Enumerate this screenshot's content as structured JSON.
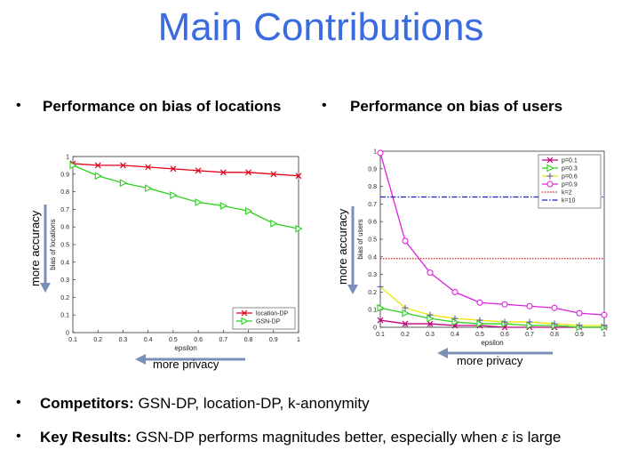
{
  "slide": {
    "title": "Main Contributions",
    "bullet_left": "Performance on bias of locations",
    "bullet_right": "Performance on bias of users",
    "more_accuracy": "more accuracy",
    "more_privacy": "more privacy",
    "competitors_label": "Competitors:",
    "competitors_text": " GSN-DP, location-DP, k-anonymity",
    "results_label": "Key Results:",
    "results_text": " GSN-DP performs magnitudes better, especially when ",
    "results_symbol": "ε",
    "results_tail": " is large",
    "bullet_char": "•"
  },
  "chart_data": [
    {
      "type": "line",
      "title": "",
      "xlabel": "epsilon",
      "ylabel": "bias of locations",
      "x": [
        0.1,
        0.2,
        0.3,
        0.4,
        0.5,
        0.6,
        0.7,
        0.8,
        0.9,
        1
      ],
      "xlim": [
        0.1,
        1
      ],
      "ylim": [
        0,
        1
      ],
      "xticks": [
        "0.1",
        "0.2",
        "0.3",
        "0.4",
        "0.5",
        "0.6",
        "0.7",
        "0.8",
        "0.9",
        "1"
      ],
      "yticks": [
        "0",
        "0.1",
        "0.2",
        "0.3",
        "0.4",
        "0.5",
        "0.6",
        "0.7",
        "0.8",
        "0.9",
        "1"
      ],
      "legend_position": "bottom-right",
      "series": [
        {
          "name": "location-DP",
          "color": "#e0001b",
          "marker": "x",
          "style": "solid",
          "values": [
            0.96,
            0.95,
            0.95,
            0.94,
            0.93,
            0.92,
            0.91,
            0.91,
            0.9,
            0.89
          ]
        },
        {
          "name": "GSN-DP",
          "color": "#2bd11b",
          "marker": "triangle-right",
          "style": "solid",
          "values": [
            0.95,
            0.89,
            0.85,
            0.82,
            0.78,
            0.74,
            0.72,
            0.69,
            0.62,
            0.59
          ]
        }
      ]
    },
    {
      "type": "line",
      "title": "",
      "xlabel": "epsilon",
      "ylabel": "bias of users",
      "x": [
        0.1,
        0.2,
        0.3,
        0.4,
        0.5,
        0.6,
        0.7,
        0.8,
        0.9,
        1
      ],
      "xlim": [
        0.1,
        1
      ],
      "ylim": [
        0,
        1
      ],
      "xticks": [
        "0.1",
        "0.2",
        "0.3",
        "0.4",
        "0.5",
        "0.6",
        "0.7",
        "0.8",
        "0.9",
        "1"
      ],
      "yticks": [
        "0",
        "0.1",
        "0.2",
        "0.3",
        "0.4",
        "0.5",
        "0.6",
        "0.7",
        "0.8",
        "0.9",
        "1"
      ],
      "legend_position": "top-right",
      "series": [
        {
          "name": "p=0.1",
          "color": "#c0007a",
          "marker": "x",
          "style": "solid",
          "values": [
            0.04,
            0.02,
            0.02,
            0.01,
            0.01,
            0.0,
            0.0,
            0.0,
            0.0,
            0.0
          ]
        },
        {
          "name": "p=0.3",
          "color": "#2bd11b",
          "marker": "triangle-right",
          "style": "solid",
          "values": [
            0.11,
            0.08,
            0.05,
            0.03,
            0.02,
            0.02,
            0.01,
            0.01,
            0.0,
            0.0
          ]
        },
        {
          "name": "p=0.6",
          "color": "#e8e800",
          "marker": "plus",
          "style": "solid",
          "values": [
            0.23,
            0.11,
            0.07,
            0.05,
            0.04,
            0.03,
            0.03,
            0.02,
            0.01,
            0.01
          ]
        },
        {
          "name": "p=0.9",
          "color": "#e020e0",
          "marker": "circle",
          "style": "solid",
          "values": [
            0.99,
            0.49,
            0.31,
            0.2,
            0.14,
            0.13,
            0.12,
            0.11,
            0.08,
            0.07
          ]
        },
        {
          "name": "k=2",
          "color": "#d02020",
          "marker": "none",
          "style": "dotted",
          "values": [
            0.39,
            0.39,
            0.39,
            0.39,
            0.39,
            0.39,
            0.39,
            0.39,
            0.39,
            0.39
          ]
        },
        {
          "name": "k=10",
          "color": "#2020c0",
          "marker": "none",
          "style": "dashdot",
          "values": [
            0.74,
            0.74,
            0.74,
            0.74,
            0.74,
            0.74,
            0.74,
            0.74,
            0.74,
            0.74
          ]
        }
      ]
    }
  ]
}
